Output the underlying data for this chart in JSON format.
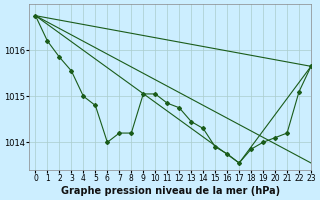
{
  "title": "Graphe pression niveau de la mer (hPa)",
  "bg_color": "#cceeff",
  "grid_color": "#aacccc",
  "line_color": "#1a5c1a",
  "xlim": [
    -0.5,
    23
  ],
  "ylim": [
    1013.4,
    1017.0
  ],
  "yticks": [
    1014,
    1015,
    1016
  ],
  "xticks": [
    0,
    1,
    2,
    3,
    4,
    5,
    6,
    7,
    8,
    9,
    10,
    11,
    12,
    13,
    14,
    15,
    16,
    17,
    18,
    19,
    20,
    21,
    22,
    23
  ],
  "detailed_line": [
    1016.75,
    1016.2,
    1015.85,
    1015.55,
    1015.0,
    1014.8,
    1014.0,
    1014.2,
    1014.2,
    1015.05,
    1015.05,
    1014.85,
    1014.75,
    1014.45,
    1014.3,
    1013.9,
    1013.75,
    1013.55,
    1013.85,
    1014.0,
    1014.1,
    1014.2,
    1015.1,
    1015.65
  ],
  "straight_line1": {
    "x": [
      0,
      23
    ],
    "y": [
      1016.75,
      1015.65
    ]
  },
  "straight_line2": {
    "x": [
      0,
      17,
      23
    ],
    "y": [
      1016.75,
      1013.55,
      1015.65
    ]
  },
  "straight_line3": {
    "x": [
      0,
      23
    ],
    "y": [
      1016.75,
      1013.55
    ]
  },
  "xlabel_fontsize": 7,
  "tick_fontsize": 5.5
}
